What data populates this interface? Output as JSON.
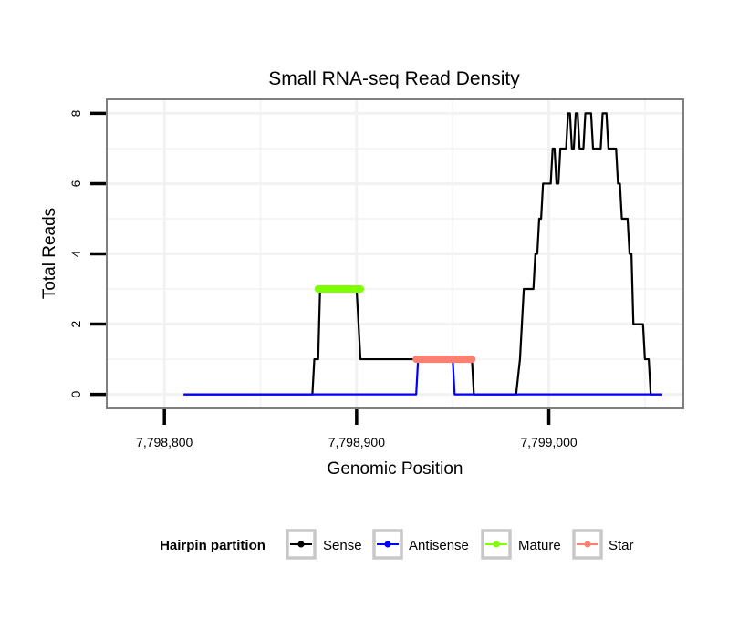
{
  "chart_data": {
    "type": "line",
    "title": "Small RNA-seq Read Density",
    "xlabel": "Genomic Position",
    "ylabel": "Total Reads",
    "xlim": [
      7798770,
      7799070
    ],
    "ylim": [
      -0.4,
      8.4
    ],
    "x_ticks": [
      7798800,
      7798900,
      7799000
    ],
    "x_tick_labels": [
      "7,798,800",
      "7,798,900",
      "7,799,000"
    ],
    "y_ticks": [
      0,
      2,
      4,
      6,
      8
    ],
    "y_tick_labels": [
      "0",
      "2",
      "4",
      "6",
      "8"
    ],
    "grid": true,
    "legend": {
      "title": "Hairpin partition",
      "position": "bottom",
      "entries": [
        "Sense",
        "Antisense",
        "Mature",
        "Star"
      ]
    },
    "series": [
      {
        "name": "Sense",
        "color": "#000000",
        "x": [
          7798810,
          7798877,
          7798878,
          7798880,
          7798881,
          7798899,
          7798900,
          7798902,
          7798904,
          7798931,
          7798932,
          7798959,
          7798960,
          7798961,
          7798983,
          7798985,
          7798987,
          7798992,
          7798993,
          7798994,
          7798995,
          7798996,
          7798997,
          7798998,
          7799001,
          7799002,
          7799003,
          7799004,
          7799005,
          7799006,
          7799008,
          7799009,
          7799010,
          7799011,
          7799012,
          7799013,
          7799014,
          7799015,
          7799016,
          7799017,
          7799018,
          7799019,
          7799020,
          7799021,
          7799022,
          7799023,
          7799024,
          7799025,
          7799026,
          7799027,
          7799028,
          7799029,
          7799030,
          7799031,
          7799032,
          7799033,
          7799034,
          7799035,
          7799036,
          7799037,
          7799038,
          7799039,
          7799041,
          7799042,
          7799043,
          7799044,
          7799045,
          7799049,
          7799050,
          7799051,
          7799052,
          7799053,
          7799054,
          7799055,
          7799059
        ],
        "y": [
          0,
          0,
          1,
          1,
          3,
          3,
          3,
          1,
          1,
          1,
          1,
          1,
          1,
          0,
          0,
          1,
          3,
          3,
          4,
          4,
          5,
          5,
          6,
          6,
          6,
          7,
          7,
          6,
          6,
          7,
          7,
          7,
          8,
          8,
          7,
          7,
          8,
          8,
          7,
          7,
          7,
          8,
          8,
          8,
          8,
          7,
          7,
          7,
          7,
          7,
          8,
          8,
          8,
          7,
          7,
          7,
          7,
          7,
          6,
          6,
          5,
          5,
          5,
          4,
          4,
          2,
          2,
          2,
          1,
          1,
          1,
          0,
          0,
          0,
          0
        ]
      },
      {
        "name": "Antisense",
        "color": "#0000ff",
        "x": [
          7798810,
          7798931,
          7798932,
          7798950,
          7798951,
          7799059
        ],
        "y": [
          0,
          0,
          1,
          1,
          0,
          0
        ]
      },
      {
        "name": "Mature",
        "color": "#7fff00",
        "x": [
          7798880,
          7798902
        ],
        "y": [
          3,
          3
        ]
      },
      {
        "name": "Star",
        "color": "#fa8072",
        "x": [
          7798931,
          7798960
        ],
        "y": [
          1,
          1
        ]
      }
    ]
  }
}
